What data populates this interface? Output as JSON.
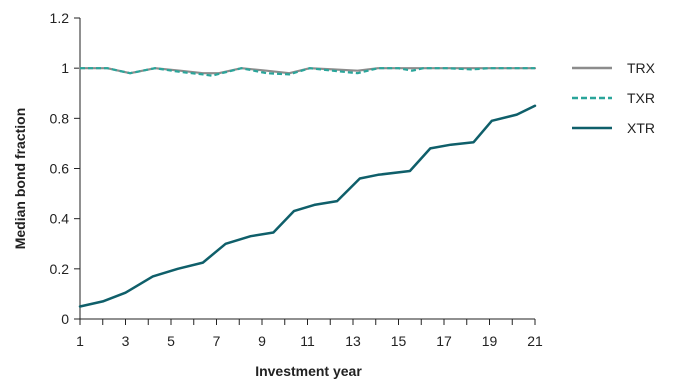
{
  "chart_data": {
    "type": "line",
    "xlabel": "Investment year",
    "ylabel": "Median bond fraction",
    "xlim": [
      1,
      21
    ],
    "ylim": [
      0,
      1.2
    ],
    "xticks": [
      1,
      3,
      5,
      7,
      9,
      11,
      13,
      15,
      17,
      19,
      21
    ],
    "xtick_labels": [
      "1",
      "3",
      "5",
      "7",
      "9",
      "11",
      "13",
      "15",
      "17",
      "19",
      "21"
    ],
    "yticks": [
      0,
      0.2,
      0.4,
      0.6,
      0.8,
      1,
      1.2
    ],
    "ytick_labels": [
      "0",
      "0.2",
      "0.4",
      "0.6",
      "0.8",
      "1",
      "1.2"
    ],
    "legend_position": "right",
    "grid": false,
    "series": [
      {
        "name": "TRX",
        "color": "#8c8c8c",
        "style": "solid",
        "x": [
          1,
          2.2,
          3.2,
          4.3,
          5.4,
          6.4,
          7.1,
          8.1,
          9.2,
          10.2,
          11.1,
          12.1,
          13.2,
          14.1,
          15,
          15.6,
          16.1,
          17.1,
          18.2,
          19,
          20.2,
          21
        ],
        "y": [
          1,
          1,
          0.98,
          1,
          0.99,
          0.98,
          0.98,
          1,
          0.99,
          0.98,
          1,
          0.995,
          0.99,
          1,
          1,
          1,
          1,
          1,
          1,
          1,
          1,
          1
        ]
      },
      {
        "name": "TXR",
        "color": "#2aa59a",
        "style": "dashed",
        "x": [
          1,
          2.2,
          3.2,
          4.3,
          5.4,
          6.4,
          6.8,
          8.1,
          9.2,
          10.2,
          11.1,
          12.1,
          13.2,
          14.1,
          15,
          15.6,
          16.1,
          17.1,
          18.2,
          19,
          20.2,
          21
        ],
        "y": [
          1,
          1,
          0.98,
          1,
          0.985,
          0.975,
          0.97,
          1,
          0.98,
          0.975,
          1,
          0.99,
          0.98,
          1,
          1,
          0.99,
          1,
          1,
          0.995,
          1,
          1,
          1
        ]
      },
      {
        "name": "XTR",
        "color": "#0f5f6a",
        "style": "solid",
        "x": [
          1,
          2,
          3,
          4.2,
          5.3,
          6.4,
          7.4,
          8.5,
          9.5,
          10.4,
          11.3,
          12.3,
          13.3,
          14.1,
          15.5,
          16.4,
          17.3,
          18.3,
          19.1,
          20.2,
          21
        ],
        "y": [
          0.05,
          0.07,
          0.105,
          0.17,
          0.2,
          0.225,
          0.3,
          0.33,
          0.345,
          0.43,
          0.455,
          0.47,
          0.56,
          0.575,
          0.59,
          0.68,
          0.695,
          0.705,
          0.79,
          0.815,
          0.85
        ]
      }
    ]
  }
}
